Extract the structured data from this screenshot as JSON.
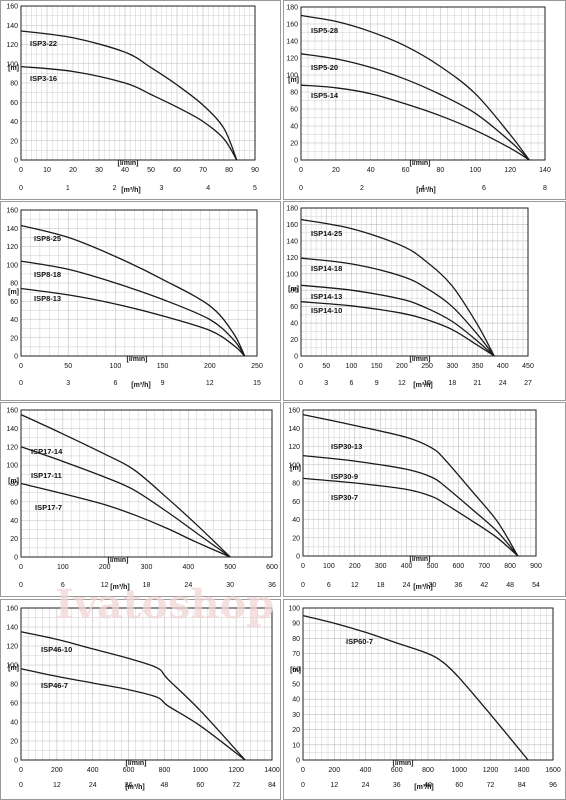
{
  "watermark": "Ivatoshop",
  "chart_data": [
    {
      "type": "line",
      "x_unit": "[l/min]",
      "x2_unit": "[m³/h]",
      "y_unit": "[m]",
      "xlim": [
        0,
        90
      ],
      "ylim": [
        0,
        160
      ],
      "x_ticks": [
        0,
        10,
        20,
        30,
        40,
        50,
        60,
        70,
        80,
        90
      ],
      "y_ticks": [
        0,
        20,
        40,
        60,
        80,
        100,
        120,
        140,
        160
      ],
      "x2_ticks": [
        0,
        1,
        2,
        3,
        4,
        5
      ],
      "series": [
        {
          "name": "ISP3-22",
          "x": [
            0,
            20,
            40,
            50,
            60,
            70,
            78,
            83
          ],
          "y": [
            134,
            127,
            112,
            96,
            78,
            57,
            33,
            0
          ]
        },
        {
          "name": "ISP3-16",
          "x": [
            0,
            20,
            40,
            50,
            60,
            70,
            78,
            83
          ],
          "y": [
            97,
            92,
            80,
            68,
            55,
            40,
            22,
            0
          ]
        }
      ]
    },
    {
      "type": "line",
      "x_unit": "[l/min]",
      "x2_unit": "[m³/h]",
      "y_unit": "[m]",
      "xlim": [
        0,
        140
      ],
      "ylim": [
        0,
        180
      ],
      "x_ticks": [
        0,
        20,
        40,
        60,
        80,
        100,
        120,
        140
      ],
      "y_ticks": [
        0,
        20,
        40,
        60,
        80,
        100,
        120,
        140,
        160,
        180
      ],
      "x2_ticks": [
        0,
        2,
        4,
        6,
        8
      ],
      "series": [
        {
          "name": "ISP5-28",
          "x": [
            0,
            20,
            40,
            60,
            80,
            100,
            120,
            131
          ],
          "y": [
            170,
            163,
            151,
            134,
            110,
            78,
            30,
            0
          ]
        },
        {
          "name": "ISP5-20",
          "x": [
            0,
            20,
            40,
            60,
            80,
            100,
            120,
            131
          ],
          "y": [
            125,
            119,
            109,
            95,
            77,
            55,
            22,
            0
          ]
        },
        {
          "name": "ISP5-14",
          "x": [
            0,
            20,
            40,
            60,
            80,
            100,
            120,
            131
          ],
          "y": [
            88,
            85,
            78,
            66,
            52,
            35,
            14,
            0
          ]
        }
      ]
    },
    {
      "type": "line",
      "x_unit": "[l/min]",
      "x2_unit": "[m³/h]",
      "y_unit": "[m]",
      "xlim": [
        0,
        250
      ],
      "ylim": [
        0,
        160
      ],
      "x_ticks": [
        0,
        50,
        100,
        150,
        200,
        250
      ],
      "y_ticks": [
        0,
        20,
        40,
        60,
        80,
        100,
        120,
        140,
        160
      ],
      "x2_ticks": [
        0,
        3,
        6,
        9,
        12,
        15
      ],
      "series": [
        {
          "name": "ISP8-25",
          "x": [
            0,
            50,
            100,
            150,
            200,
            225,
            237
          ],
          "y": [
            143,
            130,
            109,
            84,
            55,
            25,
            0
          ]
        },
        {
          "name": "ISP8-18",
          "x": [
            0,
            50,
            100,
            150,
            200,
            225,
            237
          ],
          "y": [
            104,
            95,
            80,
            62,
            40,
            18,
            0
          ]
        },
        {
          "name": "ISP8-13",
          "x": [
            0,
            50,
            100,
            150,
            200,
            225,
            237
          ],
          "y": [
            74,
            67,
            57,
            44,
            28,
            12,
            0
          ]
        }
      ]
    },
    {
      "type": "line",
      "x_unit": "[l/min]",
      "x2_unit": "[m³/h]",
      "y_unit": "[m]",
      "xlim": [
        0,
        450
      ],
      "ylim": [
        0,
        180
      ],
      "x_ticks": [
        0,
        50,
        100,
        150,
        200,
        250,
        300,
        350,
        400,
        450
      ],
      "y_ticks": [
        0,
        20,
        40,
        60,
        80,
        100,
        120,
        140,
        160,
        180
      ],
      "x2_ticks": [
        0,
        3,
        6,
        9,
        12,
        15,
        18,
        21,
        24,
        27
      ],
      "series": [
        {
          "name": "ISP14-25",
          "x": [
            0,
            100,
            200,
            250,
            300,
            350,
            383
          ],
          "y": [
            166,
            155,
            134,
            114,
            85,
            38,
            0
          ]
        },
        {
          "name": "ISP14-18",
          "x": [
            0,
            100,
            200,
            250,
            300,
            350,
            383
          ],
          "y": [
            119,
            112,
            97,
            82,
            60,
            26,
            0
          ]
        },
        {
          "name": "ISP14-13",
          "x": [
            0,
            100,
            200,
            250,
            300,
            350,
            383
          ],
          "y": [
            86,
            80,
            69,
            58,
            42,
            18,
            0
          ]
        },
        {
          "name": "ISP14-10",
          "x": [
            0,
            100,
            200,
            250,
            300,
            350,
            383
          ],
          "y": [
            66,
            61,
            52,
            44,
            32,
            13,
            0
          ]
        }
      ]
    },
    {
      "type": "line",
      "x_unit": "[l/min]",
      "x2_unit": "[m³/h]",
      "y_unit": "[m]",
      "xlim": [
        0,
        600
      ],
      "ylim": [
        0,
        160
      ],
      "x_ticks": [
        0,
        100,
        200,
        300,
        400,
        500,
        600
      ],
      "y_ticks": [
        0,
        20,
        40,
        60,
        80,
        100,
        120,
        140,
        160
      ],
      "x2_ticks": [
        0,
        6,
        12,
        18,
        24,
        30,
        36
      ],
      "series": [
        {
          "name": "ISP17-14",
          "x": [
            0,
            100,
            200,
            270,
            350,
            420,
            500
          ],
          "y": [
            155,
            134,
            112,
            95,
            64,
            35,
            0
          ]
        },
        {
          "name": "ISP17-11",
          "x": [
            0,
            100,
            200,
            270,
            350,
            420,
            500
          ],
          "y": [
            120,
            104,
            87,
            73,
            49,
            26,
            0
          ]
        },
        {
          "name": "ISP17-7",
          "x": [
            0,
            100,
            200,
            270,
            350,
            420,
            500
          ],
          "y": [
            80,
            69,
            57,
            46,
            31,
            16,
            0
          ]
        }
      ]
    },
    {
      "type": "line",
      "x_unit": "[l/min]",
      "x2_unit": "[m³/h]",
      "y_unit": "[m]",
      "xlim": [
        0,
        900
      ],
      "ylim": [
        0,
        160
      ],
      "x_ticks": [
        0,
        100,
        200,
        300,
        400,
        500,
        600,
        700,
        800,
        900
      ],
      "y_ticks": [
        0,
        20,
        40,
        60,
        80,
        100,
        120,
        140,
        160
      ],
      "x2_ticks": [
        0,
        6,
        12,
        18,
        24,
        30,
        36,
        42,
        48,
        54
      ],
      "series": [
        {
          "name": "ISP30-13",
          "x": [
            0,
            200,
            400,
            500,
            550,
            650,
            750,
            830
          ],
          "y": [
            155,
            143,
            130,
            118,
            105,
            72,
            38,
            0
          ]
        },
        {
          "name": "ISP30-9",
          "x": [
            0,
            200,
            400,
            500,
            550,
            650,
            750,
            830
          ],
          "y": [
            110,
            104,
            95,
            86,
            76,
            52,
            27,
            0
          ]
        },
        {
          "name": "ISP30-7",
          "x": [
            0,
            200,
            400,
            500,
            550,
            650,
            750,
            830
          ],
          "y": [
            85,
            80,
            73,
            65,
            57,
            39,
            20,
            0
          ]
        }
      ]
    },
    {
      "type": "line",
      "x_unit": "[l/min]",
      "x2_unit": "[m³/h]",
      "y_unit": "[m]",
      "xlim": [
        0,
        1400
      ],
      "ylim": [
        0,
        160
      ],
      "x_ticks": [
        0,
        200,
        400,
        600,
        800,
        1000,
        1200,
        1400
      ],
      "y_ticks": [
        0,
        20,
        40,
        60,
        80,
        100,
        120,
        140,
        160
      ],
      "x2_ticks": [
        0,
        12,
        24,
        36,
        48,
        60,
        72,
        84
      ],
      "series": [
        {
          "name": "ISP46-10",
          "x": [
            0,
            200,
            400,
            600,
            760,
            820,
            1000,
            1250
          ],
          "y": [
            135,
            127,
            117,
            107,
            97,
            85,
            52,
            0
          ]
        },
        {
          "name": "ISP46-7",
          "x": [
            0,
            200,
            400,
            600,
            760,
            820,
            1000,
            1250
          ],
          "y": [
            96,
            88,
            81,
            74,
            66,
            57,
            36,
            0
          ]
        }
      ]
    },
    {
      "type": "line",
      "x_unit": "[l/min]",
      "x2_unit": "[m³/h]",
      "y_unit": "[m]",
      "xlim": [
        0,
        1600
      ],
      "ylim": [
        0,
        100
      ],
      "x_ticks": [
        0,
        200,
        400,
        600,
        800,
        1000,
        1200,
        1400,
        1600
      ],
      "y_ticks": [
        0,
        10,
        20,
        30,
        40,
        50,
        60,
        70,
        80,
        90,
        100
      ],
      "x2_ticks": [
        0,
        12,
        24,
        36,
        48,
        60,
        72,
        84,
        96
      ],
      "series": [
        {
          "name": "ISP60-7",
          "x": [
            0,
            200,
            400,
            600,
            800,
            900,
            1000,
            1200,
            1440
          ],
          "y": [
            95,
            90,
            84,
            77,
            70,
            64,
            54,
            30,
            0
          ]
        }
      ]
    }
  ]
}
